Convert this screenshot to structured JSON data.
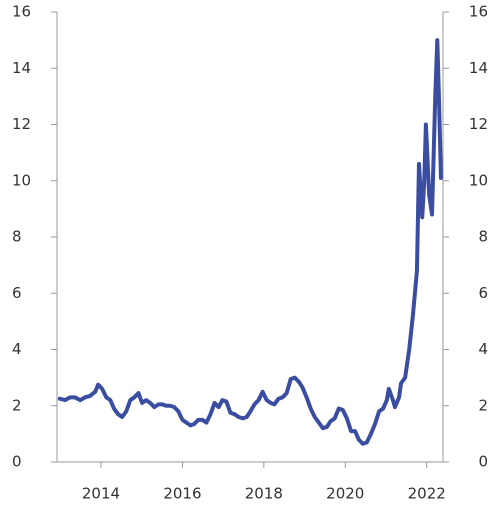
{
  "chart_data": {
    "type": "line",
    "xlim": [
      2012.92,
      2022.4
    ],
    "xticks": [
      2014,
      2016,
      2018,
      2020,
      2022
    ],
    "ylim": [
      0,
      16
    ],
    "yticks": [
      0,
      2,
      4,
      6,
      8,
      10,
      12,
      14,
      16
    ],
    "y2lim": [
      0,
      16
    ],
    "y2ticks": [
      0,
      2,
      4,
      6,
      8,
      10,
      12,
      14,
      16
    ],
    "grid": false,
    "series": [
      {
        "color": "#3a4da0",
        "x": [
          2012.99,
          2013.12,
          2013.24,
          2013.36,
          2013.49,
          2013.61,
          2013.73,
          2013.86,
          2013.93,
          2014.03,
          2014.13,
          2014.23,
          2014.32,
          2014.42,
          2014.52,
          2014.62,
          2014.72,
          2014.82,
          2014.92,
          2015.01,
          2015.11,
          2015.21,
          2015.31,
          2015.41,
          2015.51,
          2015.6,
          2015.7,
          2015.8,
          2015.9,
          2016.0,
          2016.1,
          2016.2,
          2016.29,
          2016.39,
          2016.49,
          2016.59,
          2016.69,
          2016.79,
          2016.89,
          2016.98,
          2017.08,
          2017.18,
          2017.28,
          2017.38,
          2017.48,
          2017.58,
          2017.67,
          2017.77,
          2017.87,
          2017.97,
          2018.07,
          2018.17,
          2018.26,
          2018.36,
          2018.46,
          2018.56,
          2018.66,
          2018.76,
          2018.86,
          2018.95,
          2019.05,
          2019.15,
          2019.25,
          2019.35,
          2019.45,
          2019.55,
          2019.64,
          2019.74,
          2019.84,
          2019.94,
          2020.04,
          2020.14,
          2020.24,
          2020.33,
          2020.43,
          2020.53,
          2020.63,
          2020.73,
          2020.83,
          2020.93,
          2021.02,
          2021.07,
          2021.17,
          2021.22,
          2021.32,
          2021.37,
          2021.47,
          2021.57,
          2021.66,
          2021.76,
          2021.81,
          2021.89,
          2021.94,
          2021.98,
          2022.06,
          2022.13,
          2022.21,
          2022.26,
          2022.3,
          2022.35
        ],
        "values": [
          2.25,
          2.2,
          2.3,
          2.3,
          2.2,
          2.3,
          2.35,
          2.5,
          2.75,
          2.6,
          2.3,
          2.2,
          1.9,
          1.7,
          1.6,
          1.8,
          2.2,
          2.3,
          2.45,
          2.1,
          2.2,
          2.1,
          1.95,
          2.05,
          2.05,
          2.0,
          2.0,
          1.95,
          1.8,
          1.5,
          1.4,
          1.3,
          1.35,
          1.5,
          1.5,
          1.4,
          1.7,
          2.1,
          1.95,
          2.2,
          2.15,
          1.75,
          1.7,
          1.6,
          1.55,
          1.6,
          1.8,
          2.05,
          2.2,
          2.5,
          2.2,
          2.1,
          2.05,
          2.25,
          2.3,
          2.45,
          2.95,
          3.0,
          2.85,
          2.65,
          2.3,
          1.9,
          1.6,
          1.4,
          1.2,
          1.25,
          1.45,
          1.55,
          1.9,
          1.85,
          1.55,
          1.1,
          1.1,
          0.8,
          0.65,
          0.7,
          1.0,
          1.35,
          1.8,
          1.9,
          2.2,
          2.6,
          2.2,
          1.95,
          2.3,
          2.8,
          3.0,
          4.0,
          5.2,
          6.8,
          10.6,
          8.7,
          10.0,
          12.0,
          9.5,
          8.8,
          13.0,
          15.0,
          13.0,
          10.1
        ]
      }
    ]
  }
}
